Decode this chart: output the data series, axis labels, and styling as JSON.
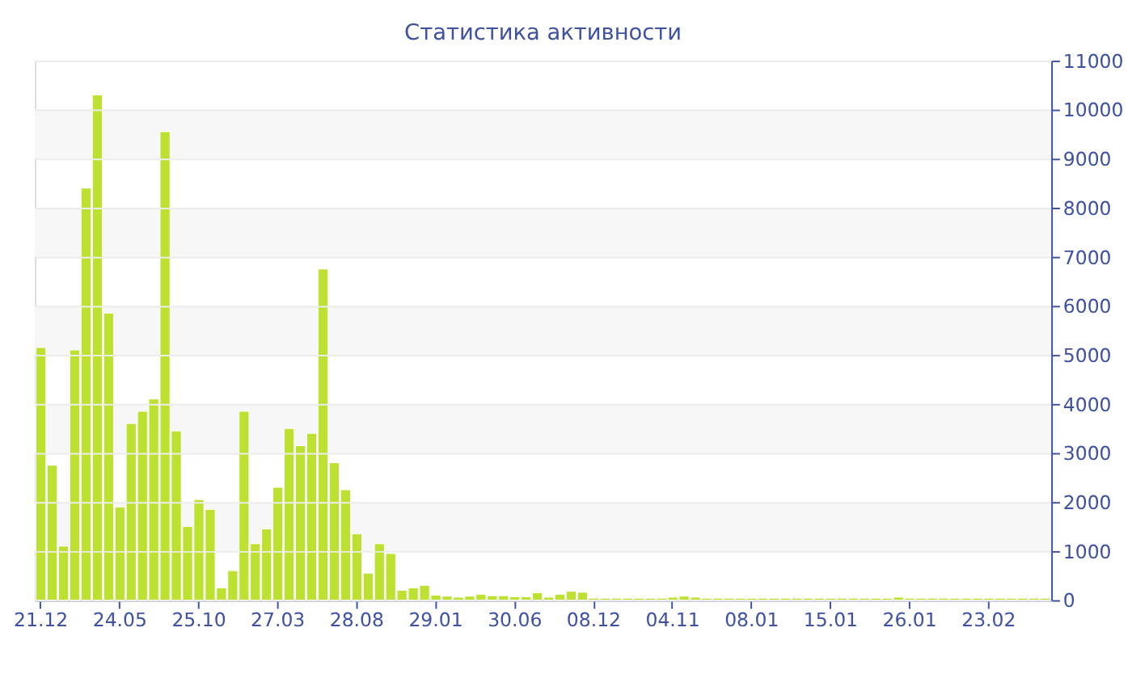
{
  "chart_data": {
    "type": "bar",
    "title": "Статистика активности",
    "categories": [
      "21.12",
      null,
      null,
      null,
      null,
      null,
      null,
      "24.05",
      null,
      null,
      null,
      null,
      null,
      null,
      "25.10",
      null,
      null,
      null,
      null,
      null,
      null,
      "27.03",
      null,
      null,
      null,
      null,
      null,
      null,
      "28.08",
      null,
      null,
      null,
      null,
      null,
      null,
      "29.01",
      null,
      null,
      null,
      null,
      null,
      null,
      "30.06",
      null,
      null,
      null,
      null,
      null,
      null,
      "08.12",
      null,
      null,
      null,
      null,
      null,
      null,
      "04.11",
      null,
      null,
      null,
      null,
      null,
      null,
      "08.01",
      null,
      null,
      null,
      null,
      null,
      null,
      "15.01",
      null,
      null,
      null,
      null,
      null,
      null,
      "26.01",
      null,
      null,
      null,
      null,
      null,
      null,
      "23.02",
      null,
      null,
      null,
      null,
      null
    ],
    "values": [
      5150,
      2750,
      1100,
      5100,
      8400,
      10300,
      5850,
      1900,
      3600,
      3850,
      4100,
      9550,
      3450,
      1500,
      2050,
      1850,
      250,
      600,
      3850,
      1150,
      1450,
      2300,
      3500,
      3150,
      3400,
      6750,
      2800,
      2250,
      1350,
      550,
      1150,
      950,
      200,
      250,
      300,
      100,
      80,
      60,
      80,
      120,
      90,
      90,
      70,
      70,
      150,
      60,
      120,
      180,
      160,
      40,
      40,
      40,
      40,
      40,
      40,
      40,
      60,
      80,
      60,
      40,
      40,
      40,
      40,
      40,
      40,
      40,
      40,
      40,
      40,
      40,
      40,
      40,
      40,
      40,
      40,
      40,
      60,
      40,
      40,
      40,
      40,
      40,
      40,
      40,
      40,
      40,
      40,
      40,
      40,
      40
    ],
    "color": "#bde131",
    "ylim": [
      0,
      11000
    ],
    "yticks": [
      0,
      1000,
      2000,
      3000,
      4000,
      5000,
      6000,
      7000,
      8000,
      9000,
      10000,
      11000
    ],
    "grid": "y"
  }
}
